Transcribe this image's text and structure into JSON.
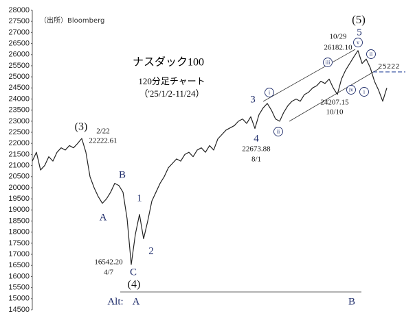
{
  "chart_data": {
    "type": "line",
    "source": "（出所）Bloomberg",
    "title": "ナスダック100",
    "subtitle": "120分足チャート",
    "period": "（'25/1/2-11/24）",
    "color": "#222222",
    "ylim": [
      14500,
      28000
    ],
    "yticks": [
      14500,
      15000,
      15500,
      16000,
      16500,
      17000,
      17500,
      18000,
      18500,
      19000,
      19500,
      20000,
      20500,
      21000,
      21500,
      22000,
      22500,
      23000,
      23500,
      24000,
      24500,
      25000,
      25500,
      26000,
      26500,
      27000,
      27500,
      28000
    ],
    "values": [
      21200,
      21600,
      20800,
      21000,
      21400,
      21200,
      21600,
      21800,
      21700,
      21900,
      21800,
      22000,
      22222.61,
      21600,
      20500,
      20000,
      19600,
      19300,
      19500,
      19800,
      20200,
      20100,
      19800,
      18600,
      16542.2,
      17900,
      18800,
      17700,
      18500,
      19400,
      19800,
      20200,
      20500,
      20900,
      21100,
      21300,
      21200,
      21500,
      21600,
      21400,
      21700,
      21800,
      21600,
      21900,
      21700,
      22200,
      22400,
      22600,
      22700,
      22800,
      23000,
      23100,
      22900,
      23200,
      22673.88,
      23300,
      23600,
      23800,
      23500,
      23100,
      23000,
      23400,
      23700,
      23900,
      24000,
      23900,
      24200,
      24300,
      24500,
      24600,
      24800,
      24700,
      24900,
      24500,
      24207.15,
      24900,
      25300,
      25600,
      25900,
      26182.1,
      25600,
      25800,
      25400,
      24800,
      24400,
      23900,
      24500
    ],
    "level": 25222,
    "level_color": "#2e4a9e",
    "annotations": [
      "(3)",
      "2/22",
      "22222.61",
      "A",
      "B",
      "1",
      "C",
      "2",
      "16542.20",
      "4/7",
      "(4)",
      "Alt:",
      "A",
      "3",
      "4",
      "22673.88",
      "8/1",
      "(5)",
      "5",
      "10/29",
      "26182.10",
      "24207.15",
      "10/10",
      "B"
    ],
    "circled": [
      "i",
      "ii",
      "iii",
      "iv",
      "v",
      "ii",
      "i"
    ]
  }
}
